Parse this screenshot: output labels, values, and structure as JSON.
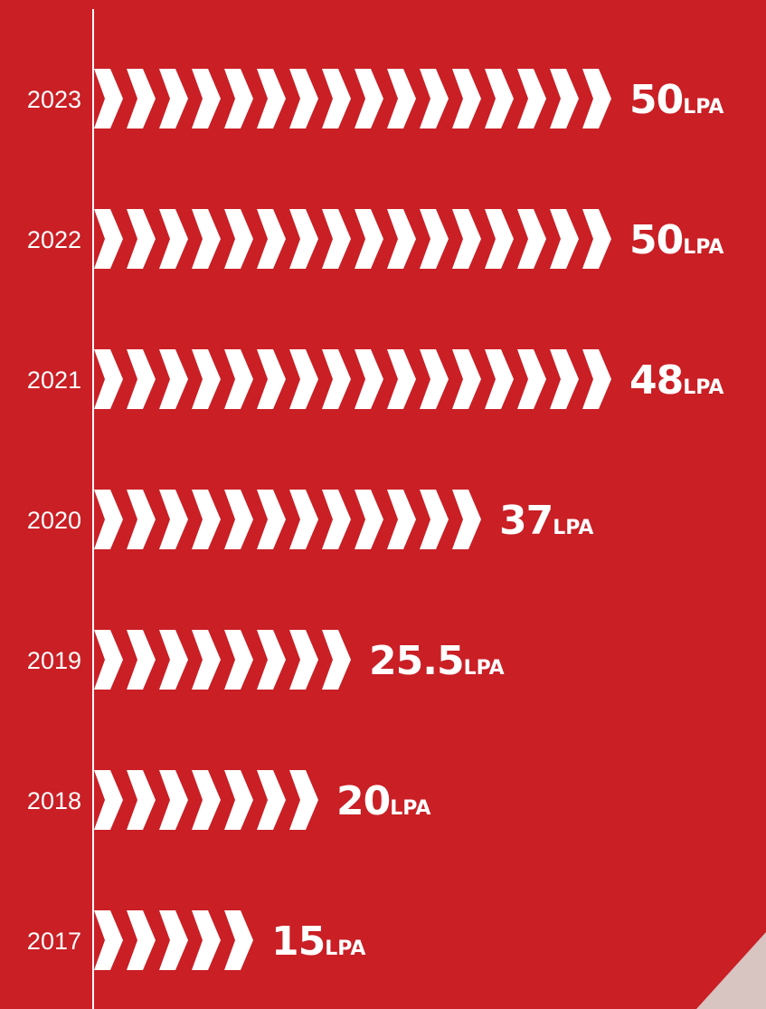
{
  "chart_data": {
    "type": "bar",
    "orientation": "horizontal",
    "categories": [
      "2023",
      "2022",
      "2021",
      "2020",
      "2019",
      "2018",
      "2017"
    ],
    "values": [
      50,
      50,
      48,
      37,
      25.5,
      20,
      15
    ],
    "value_labels": [
      "50",
      "50",
      "48",
      "37",
      "25.5",
      "20",
      "15"
    ],
    "unit": "LPA",
    "title": "",
    "xlabel": "",
    "ylabel": "",
    "grid": false,
    "legend": "none",
    "colors": {
      "background": "#C91F25",
      "bars": "#FFFFFF",
      "axis": "#FFFFFF",
      "text": "#FFFFFF"
    },
    "bar_style": "chevron-arrows"
  }
}
